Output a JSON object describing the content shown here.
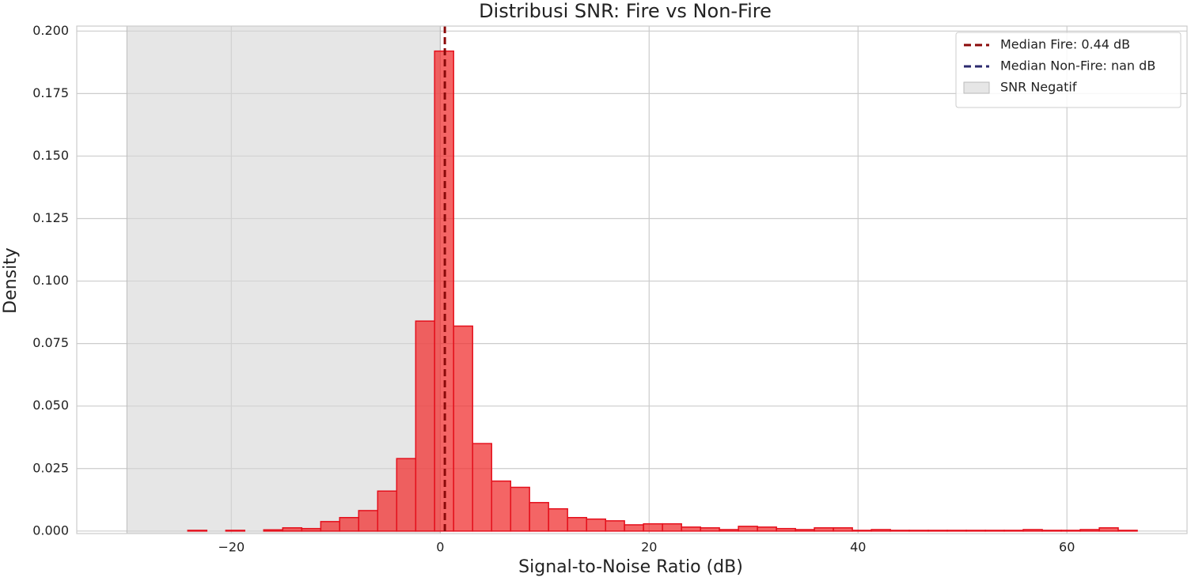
{
  "chart_data": {
    "type": "histogram",
    "title": "Distribusi SNR: Fire vs Non-Fire",
    "x_label": "Signal-to-Noise Ratio (dB)",
    "y_label": "Density",
    "bins": [
      -24.17,
      -22.35,
      -20.53,
      -18.72,
      -16.9,
      -15.08,
      -13.26,
      -11.44,
      -9.63,
      -7.81,
      -5.99,
      -4.17,
      -2.35,
      -0.54,
      1.28,
      3.1,
      4.92,
      6.74,
      8.55,
      10.37,
      12.19,
      14.01,
      15.83,
      17.64,
      19.46,
      21.28,
      23.1,
      24.92,
      26.73,
      28.55,
      30.37,
      32.19,
      34.01,
      35.82,
      37.64,
      39.46,
      41.28,
      43.1,
      44.91,
      46.73,
      48.55,
      50.37,
      52.19,
      54.0,
      55.82,
      57.64,
      59.46,
      61.28,
      63.1,
      64.91,
      66.73
    ],
    "values": [
      0.0003,
      0,
      0.0003,
      0,
      0.0005,
      0.0013,
      0.001,
      0.0038,
      0.0054,
      0.0082,
      0.016,
      0.029,
      0.084,
      0.192,
      0.082,
      0.035,
      0.02,
      0.0175,
      0.0114,
      0.0089,
      0.0054,
      0.0048,
      0.0041,
      0.0025,
      0.0029,
      0.0029,
      0.0016,
      0.0013,
      0.0006,
      0.0019,
      0.0016,
      0.001,
      0.0006,
      0.0013,
      0.0013,
      0.0003,
      0.0006,
      0.0003,
      0.0003,
      0.0003,
      0.0003,
      0.0003,
      0.0003,
      0.0003,
      0.0006,
      0.0003,
      0.0003,
      0.0006,
      0.0013,
      0.0003
    ],
    "color": "#f03232",
    "edge_color": "#e4101c",
    "xlim": [
      -34.8,
      71.5
    ],
    "ylim": [
      -0.001,
      0.202
    ],
    "xticks": [
      {
        "value": -20,
        "label": "−20"
      },
      0,
      20,
      40,
      60
    ],
    "yticks": [
      {
        "value": 0,
        "label": "0.000"
      },
      {
        "value": 0.025,
        "label": "0.025"
      },
      {
        "value": 0.05,
        "label": "0.050"
      },
      {
        "value": 0.075,
        "label": "0.075"
      },
      {
        "value": 0.1,
        "label": "0.100"
      },
      {
        "value": 0.125,
        "label": "0.125"
      },
      {
        "value": 0.15,
        "label": "0.150"
      },
      {
        "value": 0.175,
        "label": "0.175"
      },
      {
        "value": 0.2,
        "label": "0.200"
      }
    ],
    "grid": true,
    "legend_position": "upper right",
    "reference_lines": [
      {
        "name": "Median Fire: 0.44 dB",
        "x": 0.44,
        "color": "#8b0a0a"
      },
      {
        "name": "Median Non-Fire: nan dB",
        "color": "#2b2a6e"
      }
    ],
    "spans": [
      {
        "name": "SNR Negatif",
        "x": [
          -30,
          0
        ],
        "color": "#d6d6d6"
      }
    ]
  }
}
